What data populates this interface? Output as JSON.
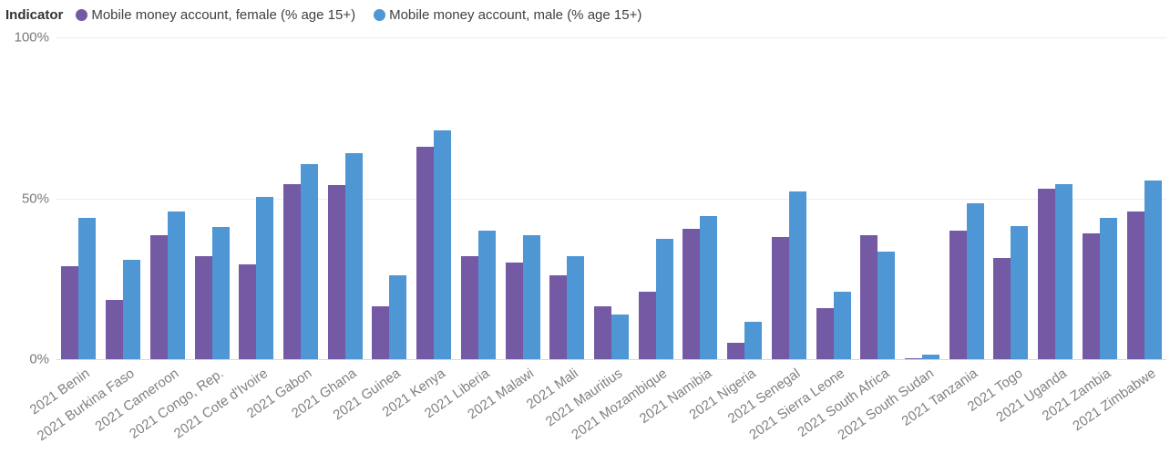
{
  "legend": {
    "title": "Indicator"
  },
  "axes": {
    "ytick_top": "100%",
    "ytick_mid": "50%",
    "ytick_bottom": "0%"
  },
  "colors": {
    "female": "#7459a4",
    "male": "#4f96d5",
    "axis_text": "#7a7a7a",
    "gridline": "#ededed"
  },
  "chart_data": {
    "type": "bar",
    "title": "",
    "legend_title": "Indicator",
    "legend_position": "top-left",
    "grid": true,
    "ylim": [
      0,
      100
    ],
    "yticks": [
      "0%",
      "50%",
      "100%"
    ],
    "categories": [
      "2021 Benin",
      "2021 Burkina Faso",
      "2021 Cameroon",
      "2021 Congo, Rep.",
      "2021 Cote d'Ivoire",
      "2021 Gabon",
      "2021 Ghana",
      "2021 Guinea",
      "2021 Kenya",
      "2021 Liberia",
      "2021 Malawi",
      "2021 Mali",
      "2021 Mauritius",
      "2021 Mozambique",
      "2021 Namibia",
      "2021 Nigeria",
      "2021 Senegal",
      "2021 Sierra Leone",
      "2021 South Africa",
      "2021 South Sudan",
      "2021 Tanzania",
      "2021 Togo",
      "2021 Uganda",
      "2021 Zambia",
      "2021 Zimbabwe"
    ],
    "series": [
      {
        "name": "Mobile money account, female (% age 15+)",
        "color": "#7459a4",
        "values": [
          29,
          18.5,
          38.5,
          32,
          29.5,
          54.5,
          54,
          16.5,
          66,
          32,
          30,
          26,
          16.5,
          21,
          40.5,
          5,
          38,
          16,
          38.5,
          0.4,
          40,
          31.5,
          53,
          39,
          46
        ]
      },
      {
        "name": "Mobile money account, male (% age 15+)",
        "color": "#4f96d5",
        "values": [
          44,
          31,
          46,
          41,
          50.5,
          60.5,
          64,
          26,
          71,
          40,
          38.5,
          32,
          14,
          37.5,
          44.5,
          11.5,
          52,
          21,
          33.5,
          1.5,
          48.5,
          41.5,
          54.5,
          44,
          55.5
        ]
      }
    ]
  }
}
